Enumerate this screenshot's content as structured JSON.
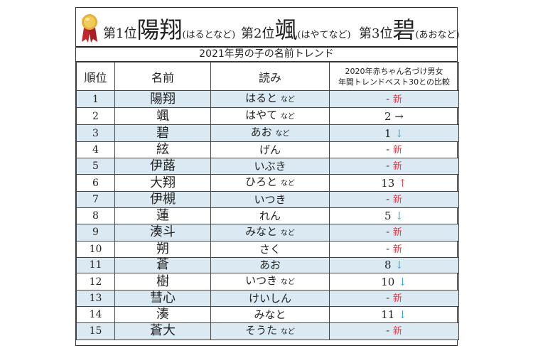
{
  "banner": {
    "ranks": [
      {
        "prefix": "第1位",
        "name": "陽翔",
        "reading": "(はるとなど)"
      },
      {
        "prefix": "第2位",
        "name": "颯",
        "reading": "(はやてなど)"
      },
      {
        "prefix": "第3位",
        "name": "碧",
        "reading": "(あおなど)"
      }
    ]
  },
  "title": "2021年男の子の名前トレンド",
  "columns": {
    "rank": "順位",
    "name": "名前",
    "reading": "読み",
    "compare_line1": "2020年赤ちゃん名づけ男女",
    "compare_line2": "年間トレンドベスト30との比較"
  },
  "nado": "など",
  "new_label": "新",
  "dash": "-",
  "arrows": {
    "up": "↑",
    "down": "↓",
    "flat": "→"
  },
  "rows": [
    {
      "rank": "1",
      "name": "陽翔",
      "reading": "はると",
      "nado": true,
      "prev": "-",
      "trend": "new"
    },
    {
      "rank": "2",
      "name": "颯",
      "reading": "はやて",
      "nado": true,
      "prev": "2",
      "trend": "flat"
    },
    {
      "rank": "3",
      "name": "碧",
      "reading": "あお",
      "nado": true,
      "prev": "1",
      "trend": "down"
    },
    {
      "rank": "4",
      "name": "絃",
      "reading": "げん",
      "nado": false,
      "prev": "-",
      "trend": "new"
    },
    {
      "rank": "5",
      "name": "伊蕗",
      "reading": "いぶき",
      "nado": false,
      "prev": "-",
      "trend": "new"
    },
    {
      "rank": "6",
      "name": "大翔",
      "reading": "ひろと",
      "nado": true,
      "prev": "13",
      "trend": "up"
    },
    {
      "rank": "7",
      "name": "伊槻",
      "reading": "いつき",
      "nado": false,
      "prev": "-",
      "trend": "new"
    },
    {
      "rank": "8",
      "name": "蓮",
      "reading": "れん",
      "nado": false,
      "prev": "5",
      "trend": "down"
    },
    {
      "rank": "9",
      "name": "湊斗",
      "reading": "みなと",
      "nado": true,
      "prev": "-",
      "trend": "new"
    },
    {
      "rank": "10",
      "name": "朔",
      "reading": "さく",
      "nado": false,
      "prev": "-",
      "trend": "new"
    },
    {
      "rank": "11",
      "name": "蒼",
      "reading": "あお",
      "nado": false,
      "prev": "8",
      "trend": "down"
    },
    {
      "rank": "12",
      "name": "樹",
      "reading": "いつき",
      "nado": true,
      "prev": "10",
      "trend": "down"
    },
    {
      "rank": "13",
      "name": "彗心",
      "reading": "けいしん",
      "nado": false,
      "prev": "-",
      "trend": "new"
    },
    {
      "rank": "14",
      "name": "湊",
      "reading": "みなと",
      "nado": false,
      "prev": "11",
      "trend": "down"
    },
    {
      "rank": "15",
      "name": "蒼大",
      "reading": "そうた",
      "nado": true,
      "prev": "-",
      "trend": "new"
    }
  ],
  "colors": {
    "row_alt": "#dbeaf2",
    "new": "#d9434e",
    "up": "#e0505a",
    "down": "#3aa8c8"
  }
}
